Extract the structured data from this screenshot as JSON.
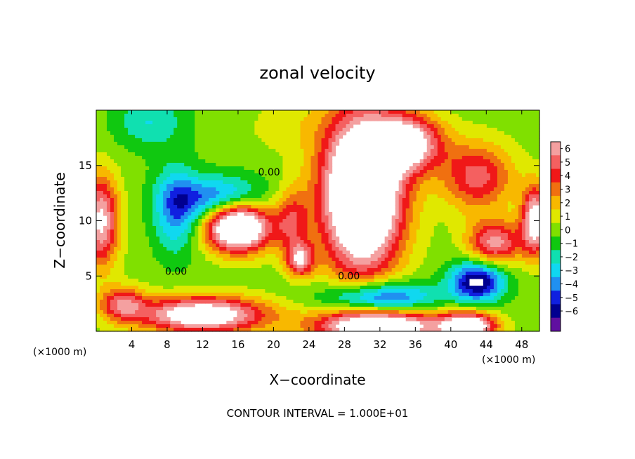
{
  "chart_data": {
    "type": "heatmap",
    "title": "zonal velocity",
    "xlabel": "X−coordinate",
    "ylabel": "Z−coordinate",
    "x_unit_left": "(×1000 m)",
    "x_unit_right": "(×1000 m)",
    "footer": "CONTOUR INTERVAL = 1.000E+01",
    "xlim": [
      0,
      50
    ],
    "ylim": [
      0,
      20
    ],
    "x_ticks": [
      4,
      8,
      12,
      16,
      20,
      24,
      28,
      32,
      36,
      40,
      44,
      48
    ],
    "y_ticks": [
      5,
      10,
      15
    ],
    "colorbar": {
      "levels": [
        6,
        5,
        4,
        3,
        2,
        1,
        0,
        -1,
        -2,
        -3,
        -4,
        -5,
        -6
      ],
      "labels": [
        "6",
        "5",
        "4",
        "3",
        "2",
        "1",
        "0",
        "−1",
        "−2",
        "−3",
        "−4",
        "−5",
        "−6"
      ],
      "colors": [
        "#f4a0a0",
        "#f46060",
        "#f01818",
        "#f07010",
        "#f8b800",
        "#e0e800",
        "#80e000",
        "#10c810",
        "#10e0b0",
        "#10d8f0",
        "#2090f0",
        "#1020e0",
        "#000090",
        "#6010a0"
      ]
    },
    "contour_labels": [
      {
        "text": "0.00",
        "x": 19.5,
        "y": 14.1
      },
      {
        "text": "0.00",
        "x": 9.0,
        "y": 5.1
      },
      {
        "text": "0.00",
        "x": 28.5,
        "y": 4.7
      }
    ],
    "blobs": [
      {
        "x": 6,
        "y": 19.0,
        "sx": 4,
        "sy": 2.5,
        "v": -2.5
      },
      {
        "x": 22,
        "y": 18.5,
        "sx": 5,
        "sy": 2.5,
        "v": 1.0
      },
      {
        "x": 0.5,
        "y": 10.0,
        "sx": 2,
        "sy": 4,
        "v": 7
      },
      {
        "x": 3,
        "y": 2.5,
        "sx": 2.5,
        "sy": 1.5,
        "v": 5
      },
      {
        "x": 9,
        "y": 11.0,
        "sx": 2.5,
        "sy": 4,
        "v": -4
      },
      {
        "x": 14,
        "y": 12.0,
        "sx": 5,
        "sy": 2,
        "v": -5
      },
      {
        "x": 16,
        "y": 9.5,
        "sx": 3.5,
        "sy": 2.2,
        "v": 12
      },
      {
        "x": 12,
        "y": 1.5,
        "sx": 7,
        "sy": 1.6,
        "v": 9
      },
      {
        "x": 22,
        "y": 10.0,
        "sx": 2,
        "sy": 3,
        "v": 4
      },
      {
        "x": 30,
        "y": 12.5,
        "sx": 4.5,
        "sy": 7,
        "v": 13
      },
      {
        "x": 35,
        "y": 17.0,
        "sx": 4,
        "sy": 2.5,
        "v": 8
      },
      {
        "x": 43,
        "y": 14.0,
        "sx": 4,
        "sy": 3,
        "v": 5
      },
      {
        "x": 45,
        "y": 8.0,
        "sx": 3,
        "sy": 2,
        "v": 6
      },
      {
        "x": 49.5,
        "y": 10.0,
        "sx": 1.5,
        "sy": 3,
        "v": 8
      },
      {
        "x": 32,
        "y": 3.0,
        "sx": 6,
        "sy": 1.5,
        "v": -6
      },
      {
        "x": 43,
        "y": 4.5,
        "sx": 3,
        "sy": 1.8,
        "v": -7
      },
      {
        "x": 42,
        "y": 0.5,
        "sx": 3,
        "sy": 1.2,
        "v": 9
      },
      {
        "x": 32,
        "y": 0.5,
        "sx": 7,
        "sy": 1.5,
        "v": 10
      },
      {
        "x": 23,
        "y": 6.5,
        "sx": 1.5,
        "sy": 1.5,
        "v": 6
      }
    ]
  }
}
